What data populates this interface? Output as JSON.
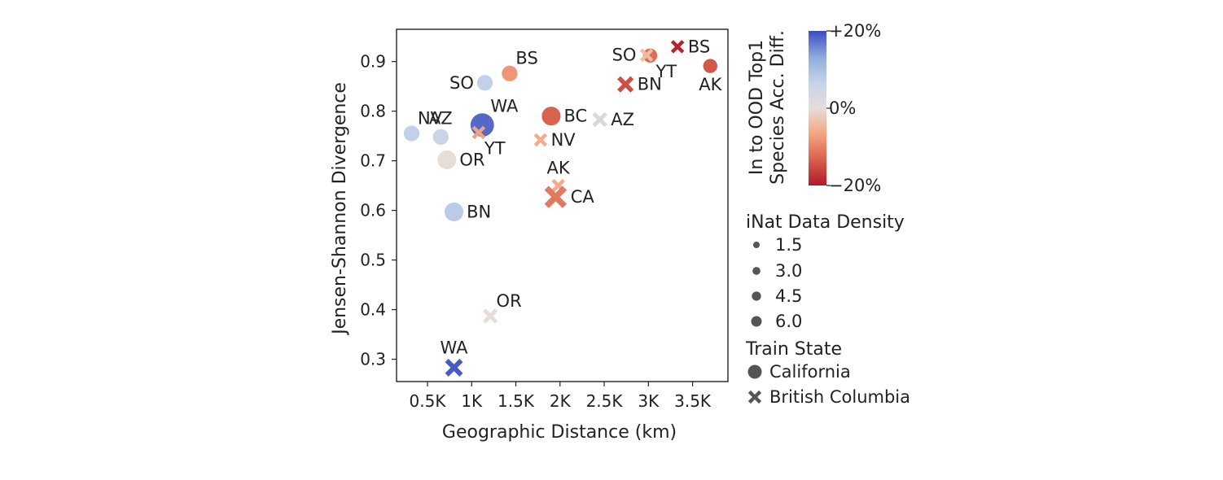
{
  "chart_data": {
    "type": "scatter",
    "xlabel": "Geographic Distance (km)",
    "ylabel": "Jensen-Shannon Divergence",
    "xlim": [
      150,
      3900
    ],
    "ylim": [
      0.255,
      0.965
    ],
    "x_ticks": [
      {
        "value": 500,
        "label": "0.5K"
      },
      {
        "value": 1000,
        "label": "1K"
      },
      {
        "value": 1500,
        "label": "1.5K"
      },
      {
        "value": 2000,
        "label": "2K"
      },
      {
        "value": 2500,
        "label": "2.5K"
      },
      {
        "value": 3000,
        "label": "3K"
      },
      {
        "value": 3500,
        "label": "3.5K"
      }
    ],
    "y_ticks": [
      {
        "value": 0.3,
        "label": "0.3"
      },
      {
        "value": 0.4,
        "label": "0.4"
      },
      {
        "value": 0.5,
        "label": "0.5"
      },
      {
        "value": 0.6,
        "label": "0.6"
      },
      {
        "value": 0.7,
        "label": "0.7"
      },
      {
        "value": 0.8,
        "label": "0.8"
      },
      {
        "value": 0.9,
        "label": "0.9"
      }
    ],
    "grid": false,
    "colorbar": {
      "label_line1": "In to OOD Top1",
      "label_line2": "Species Acc. Diff.",
      "min": -20,
      "max": 20,
      "ticks": [
        {
          "value": 20,
          "label": "+20%"
        },
        {
          "value": 0,
          "label": "0%"
        },
        {
          "value": -20,
          "label": "−20%"
        }
      ],
      "colormap": "coolwarm_r",
      "stops": [
        "#b2182b",
        "#d6604d",
        "#f4a582",
        "#e6ddd8",
        "#c5d3ea",
        "#8faadc",
        "#3b4cc0"
      ]
    },
    "size_legend": {
      "title": "iNat Data Density",
      "entries": [
        {
          "value": 1.5,
          "label": "1.5"
        },
        {
          "value": 3.0,
          "label": "3.0"
        },
        {
          "value": 4.5,
          "label": "4.5"
        },
        {
          "value": 6.0,
          "label": "6.0"
        }
      ]
    },
    "marker_legend": {
      "title": "Train State",
      "entries": [
        {
          "marker": "circle",
          "label": "California"
        },
        {
          "marker": "x",
          "label": "British Columbia"
        }
      ]
    },
    "series": [
      {
        "name": "California",
        "marker": "circle",
        "points": [
          {
            "label": "NV",
            "x": 320,
            "y": 0.755,
            "density": 3.5,
            "acc_diff": 7,
            "label_pos": "above-right"
          },
          {
            "label": "AZ",
            "x": 650,
            "y": 0.748,
            "density": 3.5,
            "acc_diff": 6,
            "label_pos": "above"
          },
          {
            "label": "OR",
            "x": 720,
            "y": 0.702,
            "density": 4.5,
            "acc_diff": 0,
            "label_pos": "right"
          },
          {
            "label": "BN",
            "x": 800,
            "y": 0.597,
            "density": 4.5,
            "acc_diff": 8,
            "label_pos": "right"
          },
          {
            "label": "SO",
            "x": 1150,
            "y": 0.857,
            "density": 3.5,
            "acc_diff": 7,
            "label_pos": "left"
          },
          {
            "label": "WA",
            "x": 1120,
            "y": 0.772,
            "density": 6.0,
            "acc_diff": 18,
            "label_pos": "above-right"
          },
          {
            "label": "BS",
            "x": 1430,
            "y": 0.876,
            "density": 3.5,
            "acc_diff": -8,
            "label_pos": "above-right"
          },
          {
            "label": "BC",
            "x": 1900,
            "y": 0.79,
            "density": 4.5,
            "acc_diff": -13,
            "label_pos": "right"
          },
          {
            "label": "YT",
            "x": 3020,
            "y": 0.912,
            "density": 3.0,
            "acc_diff": -12,
            "label_pos": "below-right"
          },
          {
            "label": "AK",
            "x": 3700,
            "y": 0.891,
            "density": 3.0,
            "acc_diff": -14,
            "label_pos": "below"
          }
        ]
      },
      {
        "name": "British Columbia",
        "marker": "x",
        "points": [
          {
            "label": "YT",
            "x": 1080,
            "y": 0.757,
            "density": 3.0,
            "acc_diff": -7,
            "label_pos": "below-right"
          },
          {
            "label": "NV",
            "x": 1780,
            "y": 0.742,
            "density": 3.0,
            "acc_diff": -6,
            "label_pos": "right"
          },
          {
            "label": "AZ",
            "x": 2450,
            "y": 0.783,
            "density": 3.5,
            "acc_diff": 3,
            "label_pos": "right"
          },
          {
            "label": "AK",
            "x": 1980,
            "y": 0.65,
            "density": 3.0,
            "acc_diff": -6,
            "label_pos": "above"
          },
          {
            "label": "CA",
            "x": 1950,
            "y": 0.627,
            "density": 6.0,
            "acc_diff": -11,
            "label_pos": "right"
          },
          {
            "label": "OR",
            "x": 1210,
            "y": 0.387,
            "density": 3.5,
            "acc_diff": 0,
            "label_pos": "above-right"
          },
          {
            "label": "WA",
            "x": 800,
            "y": 0.283,
            "density": 4.5,
            "acc_diff": 19,
            "label_pos": "above"
          },
          {
            "label": "SO",
            "x": 2980,
            "y": 0.913,
            "density": 3.0,
            "acc_diff": -4,
            "label_pos": "left"
          },
          {
            "label": "BN",
            "x": 2740,
            "y": 0.854,
            "density": 4.0,
            "acc_diff": -15,
            "label_pos": "right"
          },
          {
            "label": "BS",
            "x": 3330,
            "y": 0.93,
            "density": 3.0,
            "acc_diff": -19,
            "label_pos": "right"
          }
        ]
      }
    ]
  }
}
